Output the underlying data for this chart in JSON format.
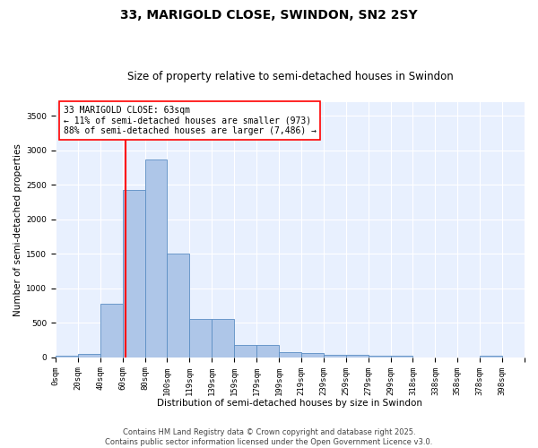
{
  "title": "33, MARIGOLD CLOSE, SWINDON, SN2 2SY",
  "subtitle": "Size of property relative to semi-detached houses in Swindon",
  "xlabel": "Distribution of semi-detached houses by size in Swindon",
  "ylabel": "Number of semi-detached properties",
  "bin_labels": [
    "0sqm",
    "20sqm",
    "40sqm",
    "60sqm",
    "80sqm",
    "100sqm",
    "119sqm",
    "139sqm",
    "159sqm",
    "179sqm",
    "199sqm",
    "219sqm",
    "239sqm",
    "259sqm",
    "279sqm",
    "299sqm",
    "318sqm",
    "338sqm",
    "358sqm",
    "378sqm",
    "398sqm"
  ],
  "bar_heights": [
    30,
    50,
    780,
    2430,
    2870,
    1510,
    555,
    560,
    185,
    185,
    75,
    65,
    40,
    35,
    28,
    20,
    0,
    0,
    0,
    30,
    0
  ],
  "bar_color": "#aec6e8",
  "bar_edge_color": "#5b8ec4",
  "background_color": "#e8f0fe",
  "grid_color": "#ffffff",
  "red_line_bin": 3,
  "annotation_text": "33 MARIGOLD CLOSE: 63sqm\n← 11% of semi-detached houses are smaller (973)\n88% of semi-detached houses are larger (7,486) →",
  "footer_text": "Contains HM Land Registry data © Crown copyright and database right 2025.\nContains public sector information licensed under the Open Government Licence v3.0.",
  "ylim": [
    0,
    3700
  ],
  "yticks": [
    0,
    500,
    1000,
    1500,
    2000,
    2500,
    3000,
    3500
  ],
  "title_fontsize": 10,
  "subtitle_fontsize": 8.5,
  "axis_label_fontsize": 7.5,
  "tick_fontsize": 6.5,
  "annotation_fontsize": 7,
  "footer_fontsize": 6
}
